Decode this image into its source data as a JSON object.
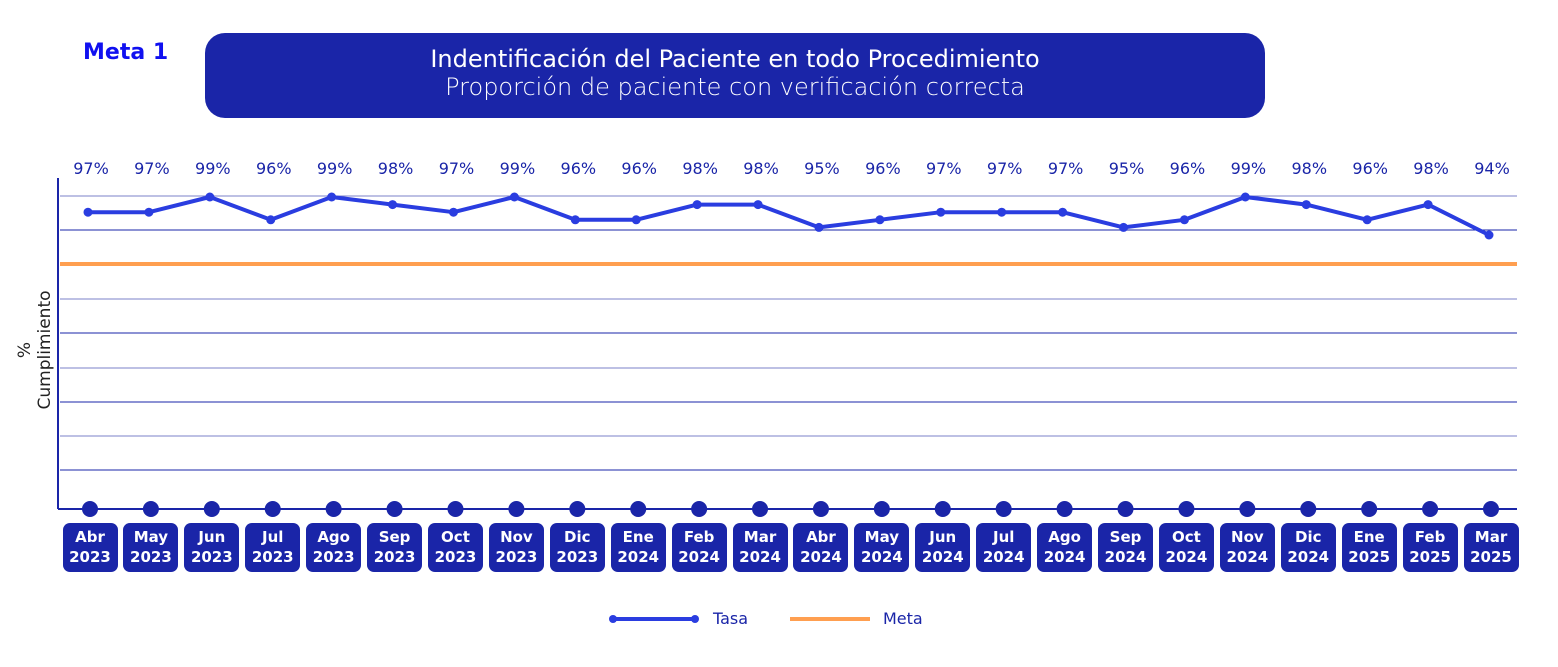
{
  "header": {
    "badge": "Meta 1",
    "title": "Indentificación del Paciente en todo Procedimiento",
    "subtitle": "Proporción de paciente con verificación correcta"
  },
  "chart_data": {
    "type": "line",
    "ylabel": "% Cumplimiento",
    "categories": [
      [
        "Abr",
        "2023"
      ],
      [
        "May",
        "2023"
      ],
      [
        "Jun",
        "2023"
      ],
      [
        "Jul",
        "2023"
      ],
      [
        "Ago",
        "2023"
      ],
      [
        "Sep",
        "2023"
      ],
      [
        "Oct",
        "2023"
      ],
      [
        "Nov",
        "2023"
      ],
      [
        "Dic",
        "2023"
      ],
      [
        "Ene",
        "2024"
      ],
      [
        "Feb",
        "2024"
      ],
      [
        "Mar",
        "2024"
      ],
      [
        "Abr",
        "2024"
      ],
      [
        "May",
        "2024"
      ],
      [
        "Jun",
        "2024"
      ],
      [
        "Jul",
        "2024"
      ],
      [
        "Ago",
        "2024"
      ],
      [
        "Sep",
        "2024"
      ],
      [
        "Oct",
        "2024"
      ],
      [
        "Nov",
        "2024"
      ],
      [
        "Dic",
        "2024"
      ],
      [
        "Ene",
        "2025"
      ],
      [
        "Feb",
        "2025"
      ],
      [
        "Mar",
        "2025"
      ]
    ],
    "series": [
      {
        "name": "Tasa",
        "color": "#2a3de0",
        "values": [
          97,
          97,
          99,
          96,
          99,
          98,
          97,
          99,
          96,
          96,
          98,
          98,
          95,
          96,
          97,
          97,
          97,
          95,
          96,
          99,
          98,
          96,
          98,
          94
        ],
        "labels": [
          "97%",
          "97%",
          "99%",
          "96%",
          "99%",
          "98%",
          "97%",
          "99%",
          "96%",
          "96%",
          "98%",
          "98%",
          "95%",
          "96%",
          "97%",
          "97%",
          "97%",
          "95%",
          "96%",
          "99%",
          "98%",
          "96%",
          "98%",
          "94%"
        ]
      },
      {
        "name": "Meta",
        "color": "#ff9f50",
        "value": 90
      }
    ],
    "grid": true,
    "legend": "bottom"
  }
}
